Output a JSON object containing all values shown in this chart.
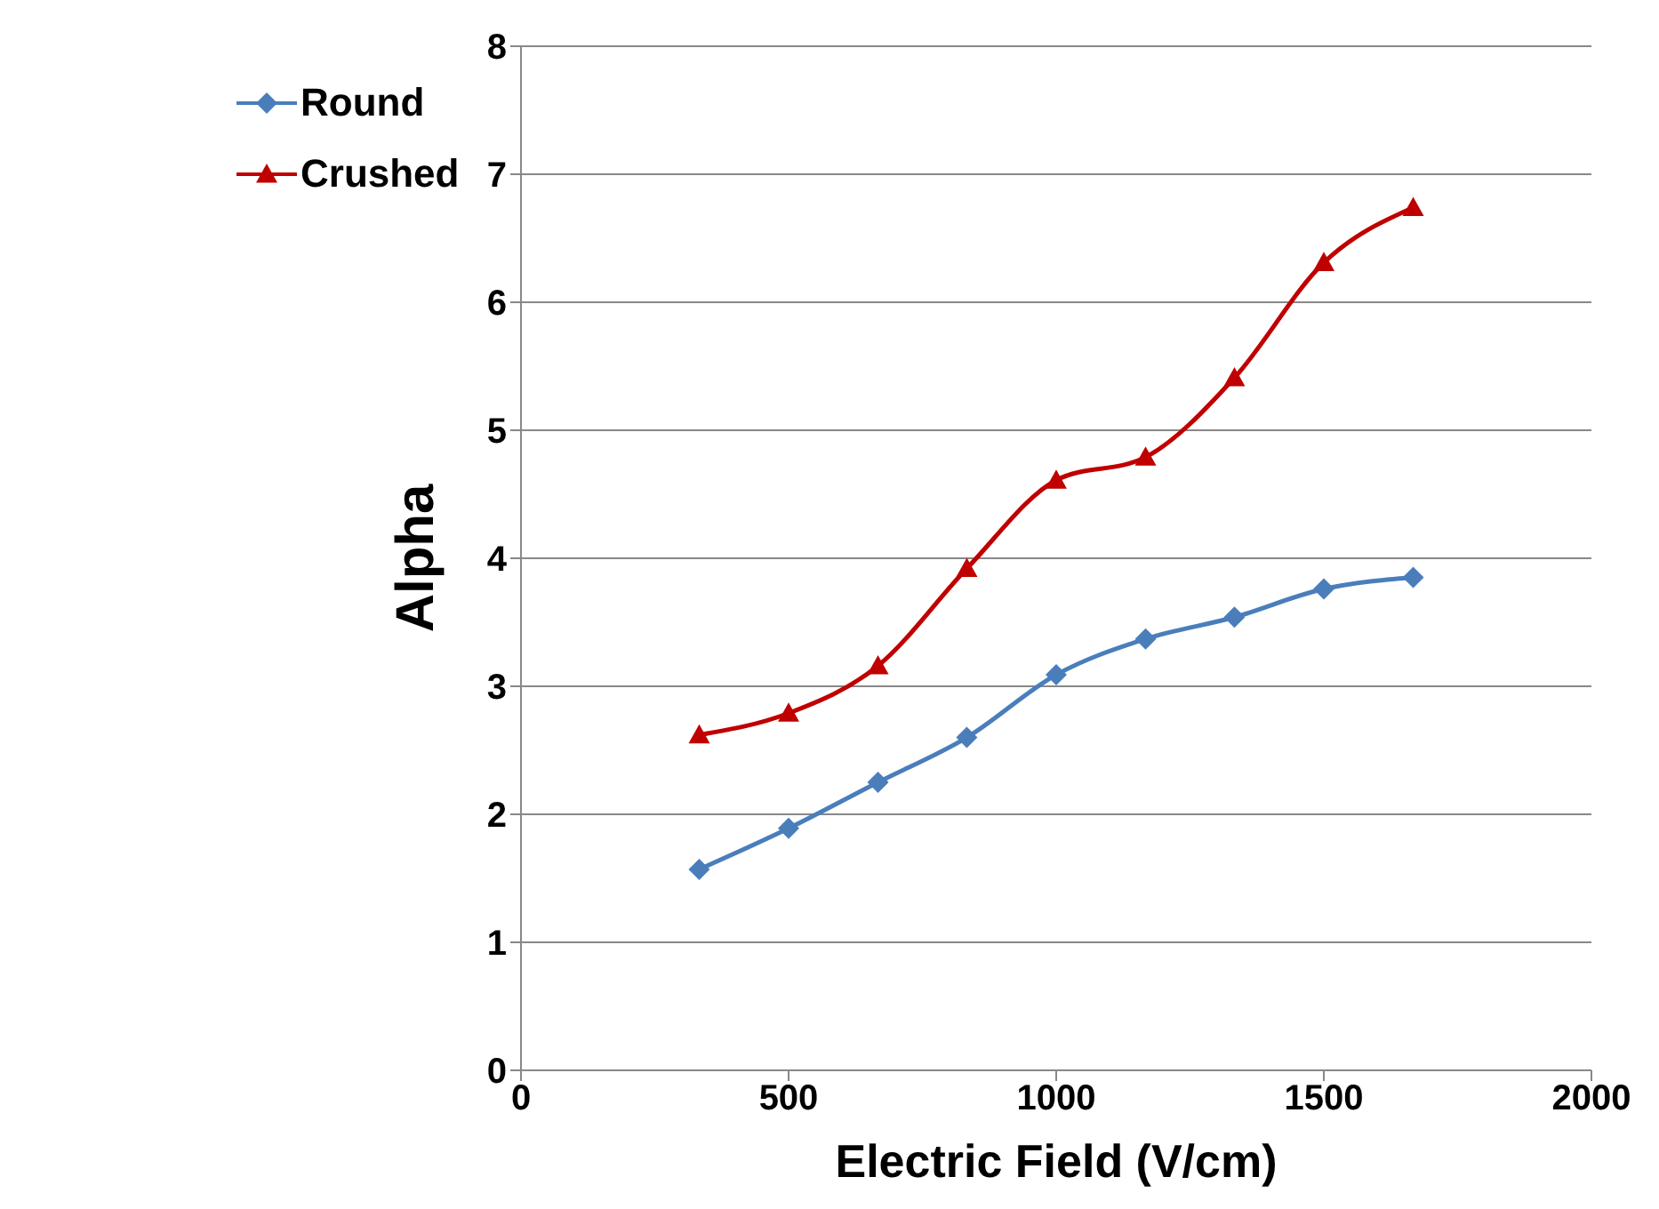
{
  "chart_data": {
    "type": "line",
    "xlabel": "Electric Field (V/cm)",
    "ylabel": "Alpha",
    "x": [
      333,
      500,
      667,
      833,
      1000,
      1167,
      1333,
      1500,
      1667
    ],
    "series": [
      {
        "name": "Round",
        "color": "#4a7ebb",
        "marker": "diamond",
        "values": [
          1.57,
          1.89,
          2.25,
          2.6,
          3.09,
          3.37,
          3.54,
          3.76,
          3.85
        ]
      },
      {
        "name": "Crushed",
        "color": "#c00000",
        "marker": "triangle",
        "values": [
          2.62,
          2.79,
          3.16,
          3.92,
          4.61,
          4.79,
          5.41,
          6.31,
          6.74
        ]
      }
    ],
    "xlim": [
      0,
      2000
    ],
    "xticks": [
      0,
      500,
      1000,
      1500,
      2000
    ],
    "ylim": [
      0,
      8
    ],
    "yticks": [
      0,
      1,
      2,
      3,
      4,
      5,
      6,
      7,
      8
    ],
    "grid": "y",
    "legend": "top left",
    "line_style": "solid"
  }
}
